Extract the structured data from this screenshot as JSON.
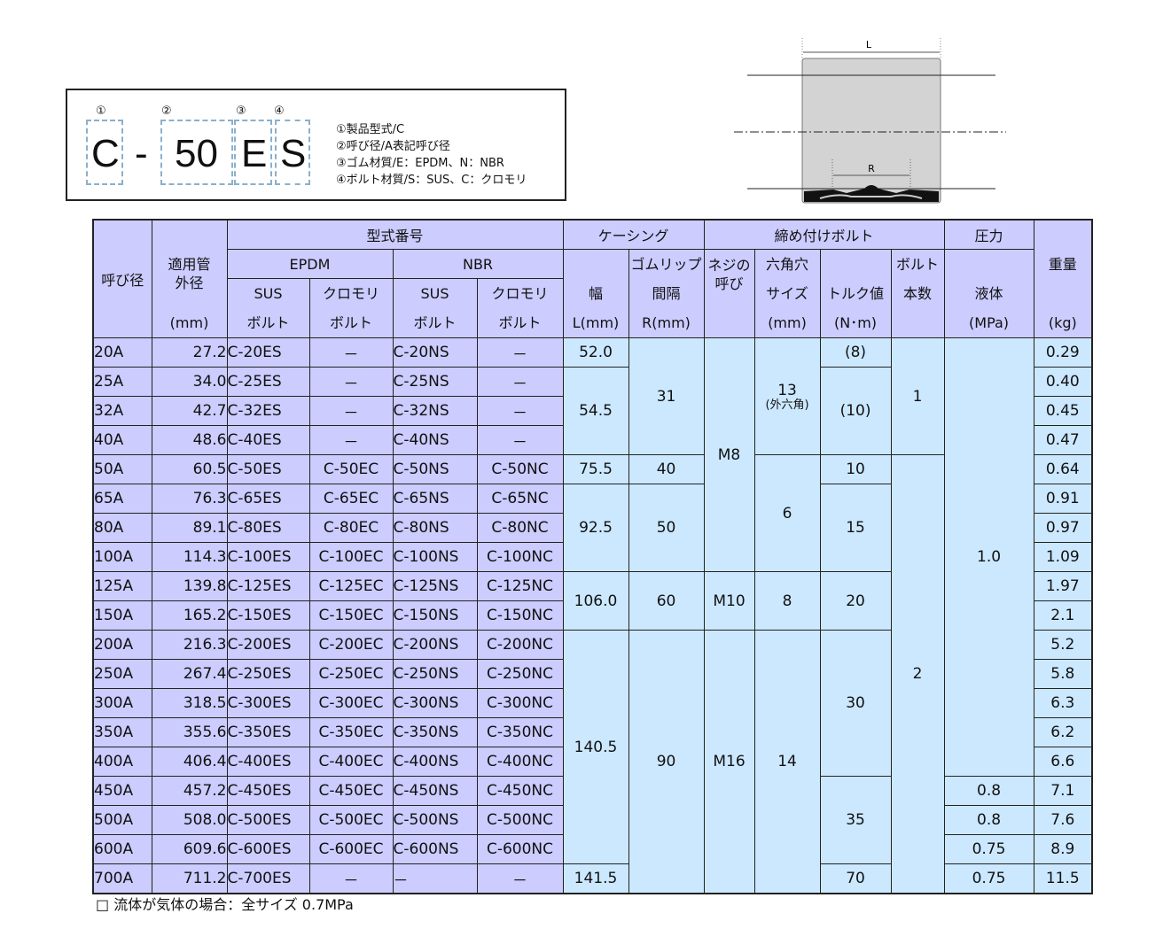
{
  "code_example": {
    "letters": [
      "C",
      "-",
      "50",
      "E",
      "S"
    ],
    "markers": [
      "①",
      "②",
      "③",
      "④"
    ],
    "legend": [
      "①製品型式/C",
      "②呼び径/A表記呼び径",
      "③ゴム材質/E：EPDM、N：NBR",
      "④ボルト材質/S：SUS、C：クロモリ"
    ]
  },
  "diagram": {
    "label_l": "L",
    "label_r": "R"
  },
  "colors": {
    "header": "#ccccff",
    "left_cells": "#ccccff",
    "right_cells": "#cce8ff"
  },
  "table": {
    "headers": {
      "nominal": "呼び径",
      "od_1": "適用管",
      "od_2": "外径",
      "od_unit": "(mm)",
      "model": "型式番号",
      "epdm": "EPDM",
      "nbr": "NBR",
      "sus": "SUS",
      "cromo": "クロモリ",
      "bolt": "ボルト",
      "casing": "ケーシング",
      "width_1": "幅",
      "width_2": "L(mm)",
      "lip_1": "ゴムリップ",
      "lip_2": "間隔",
      "lip_3": "R(mm)",
      "fasten": "締め付けボルト",
      "screw_1": "ネジの",
      "screw_2": "呼び",
      "hex_1": "六角穴",
      "hex_2": "サイズ",
      "hex_3": "(mm)",
      "torque_1": "トルク値",
      "torque_2": "(N･m)",
      "count_1": "ボルト",
      "count_2": "本数",
      "pressure": "圧力",
      "liquid_1": "液体",
      "liquid_2": "(MPa)",
      "weight_1": "重量",
      "weight_2": "(kg)"
    },
    "rows": [
      [
        "20A",
        "27.2",
        "C-20ES",
        "－",
        "C-20NS",
        "－",
        "0.29"
      ],
      [
        "25A",
        "34.0",
        "C-25ES",
        "－",
        "C-25NS",
        "－",
        "0.40"
      ],
      [
        "32A",
        "42.7",
        "C-32ES",
        "－",
        "C-32NS",
        "－",
        "0.45"
      ],
      [
        "40A",
        "48.6",
        "C-40ES",
        "－",
        "C-40NS",
        "－",
        "0.47"
      ],
      [
        "50A",
        "60.5",
        "C-50ES",
        "C-50EC",
        "C-50NS",
        "C-50NC",
        "0.64"
      ],
      [
        "65A",
        "76.3",
        "C-65ES",
        "C-65EC",
        "C-65NS",
        "C-65NC",
        "0.91"
      ],
      [
        "80A",
        "89.1",
        "C-80ES",
        "C-80EC",
        "C-80NS",
        "C-80NC",
        "0.97"
      ],
      [
        "100A",
        "114.3",
        "C-100ES",
        "C-100EC",
        "C-100NS",
        "C-100NC",
        "1.09"
      ],
      [
        "125A",
        "139.8",
        "C-125ES",
        "C-125EC",
        "C-125NS",
        "C-125NC",
        "1.97"
      ],
      [
        "150A",
        "165.2",
        "C-150ES",
        "C-150EC",
        "C-150NS",
        "C-150NC",
        "2.1"
      ],
      [
        "200A",
        "216.3",
        "C-200ES",
        "C-200EC",
        "C-200NS",
        "C-200NC",
        "5.2"
      ],
      [
        "250A",
        "267.4",
        "C-250ES",
        "C-250EC",
        "C-250NS",
        "C-250NC",
        "5.8"
      ],
      [
        "300A",
        "318.5",
        "C-300ES",
        "C-300EC",
        "C-300NS",
        "C-300NC",
        "6.3"
      ],
      [
        "350A",
        "355.6",
        "C-350ES",
        "C-350EC",
        "C-350NS",
        "C-350NC",
        "6.2"
      ],
      [
        "400A",
        "406.4",
        "C-400ES",
        "C-400EC",
        "C-400NS",
        "C-400NC",
        "6.6"
      ],
      [
        "450A",
        "457.2",
        "C-450ES",
        "C-450EC",
        "C-450NS",
        "C-450NC",
        "7.1"
      ],
      [
        "500A",
        "508.0",
        "C-500ES",
        "C-500EC",
        "C-500NS",
        "C-500NC",
        "7.6"
      ],
      [
        "600A",
        "609.6",
        "C-600ES",
        "C-600EC",
        "C-600NS",
        "C-600NC",
        "8.9"
      ],
      [
        "700A",
        "711.2",
        "C-700ES",
        "－",
        "－",
        "－",
        "11.5"
      ]
    ],
    "merged": {
      "width_l": [
        {
          "v": "52.0",
          "span": 1
        },
        {
          "v": "54.5",
          "span": 3
        },
        {
          "v": "75.5",
          "span": 1
        },
        {
          "v": "92.5",
          "span": 3
        },
        {
          "v": "106.0",
          "span": 2
        },
        {
          "v": "140.5",
          "span": 8
        },
        {
          "v": "141.5",
          "span": 1
        }
      ],
      "lip_r": [
        {
          "v": "31",
          "span": 4
        },
        {
          "v": "40",
          "span": 1
        },
        {
          "v": "50",
          "span": 3
        },
        {
          "v": "60",
          "span": 2
        },
        {
          "v": "90",
          "span": 9
        }
      ],
      "screw": [
        {
          "v": "M8",
          "span": 8
        },
        {
          "v": "M10",
          "span": 2
        },
        {
          "v": "M16",
          "span": 9
        }
      ],
      "hex": [
        {
          "v": "13",
          "sub": "(外六角)",
          "span": 4
        },
        {
          "v": "6",
          "span": 4
        },
        {
          "v": "8",
          "span": 2
        },
        {
          "v": "14",
          "span": 9
        }
      ],
      "torque": [
        {
          "v": "(8)",
          "span": 1
        },
        {
          "v": "(10)",
          "span": 3
        },
        {
          "v": "10",
          "span": 1
        },
        {
          "v": "15",
          "span": 3
        },
        {
          "v": "20",
          "span": 2
        },
        {
          "v": "30",
          "span": 5
        },
        {
          "v": "35",
          "span": 3
        },
        {
          "v": "70",
          "span": 1
        }
      ],
      "bolt_count": [
        {
          "v": "1",
          "span": 4
        },
        {
          "v": "2",
          "span": 15
        }
      ],
      "pressure": [
        {
          "v": "1.0",
          "span": 15
        },
        {
          "v": "0.8",
          "span": 1
        },
        {
          "v": "0.8",
          "span": 1
        },
        {
          "v": "0.75",
          "span": 1
        },
        {
          "v": "0.75",
          "span": 1
        }
      ]
    }
  },
  "note": "□ 流体が気体の場合：全サイズ 0.7MPa"
}
